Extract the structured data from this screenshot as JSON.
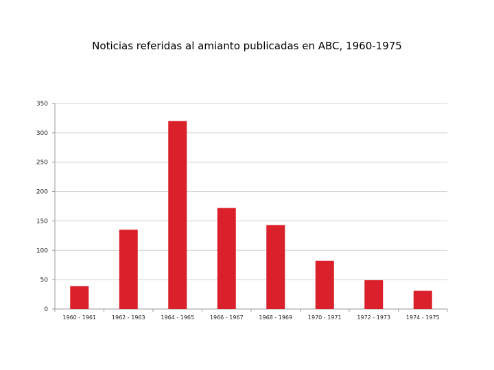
{
  "chart_data": {
    "type": "bar",
    "title": "Noticias referidas al amianto publicadas en ABC, 1960-1975",
    "xlabel": "",
    "ylabel": "",
    "categories": [
      "1960 - 1961",
      "1962 - 1963",
      "1964 - 1965",
      "1966 - 1967",
      "1968 - 1969",
      "1970 - 1971",
      "1972 - 1973",
      "1974 - 1975"
    ],
    "values": [
      39,
      135,
      320,
      172,
      143,
      82,
      49,
      31
    ],
    "ylim": [
      0,
      350
    ],
    "yticks": [
      0,
      50,
      100,
      150,
      200,
      250,
      300,
      350
    ],
    "grid": true,
    "legend": "none",
    "bar_color": "#d9202b",
    "grid_color": "#d0d0d0"
  }
}
